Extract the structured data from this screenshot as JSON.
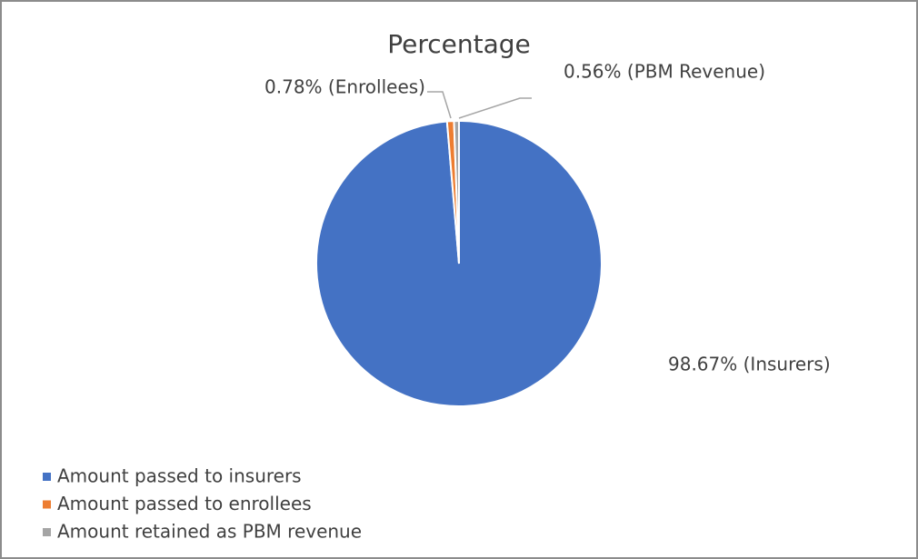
{
  "chart_data": {
    "type": "pie",
    "title": "Percentage",
    "categories": [
      "Amount passed to insurers",
      "Amount passed to enrollees",
      "Amount retained as PBM revenue"
    ],
    "values": [
      98.67,
      0.78,
      0.56
    ],
    "value_labels": [
      "98.67% (Insurers)",
      "0.78% (Enrollees)",
      "0.56% (PBM Revenue)"
    ],
    "colors": [
      "#4472c4",
      "#ed7d31",
      "#a5a5a5"
    ],
    "legend": "bottom-left"
  }
}
